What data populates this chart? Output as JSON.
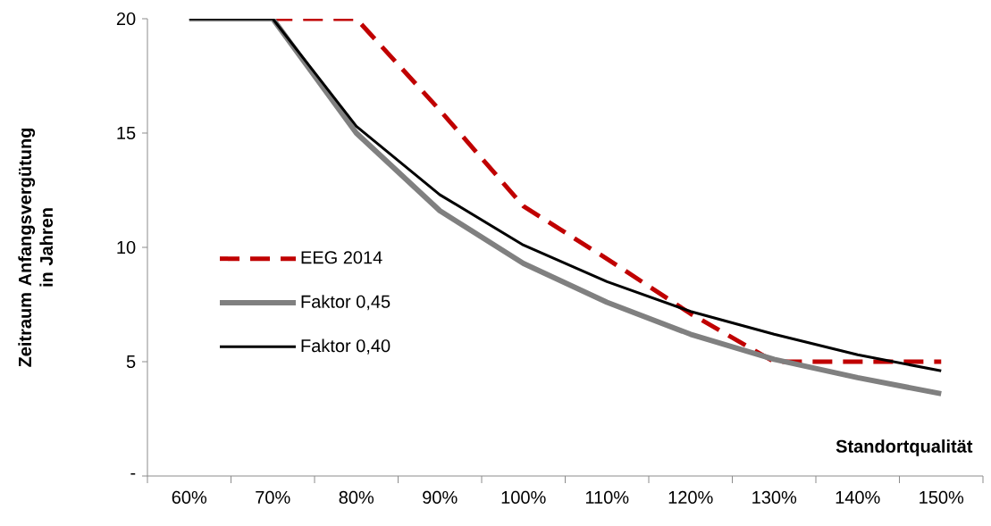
{
  "chart_data": {
    "type": "line",
    "xlabel": "Standortqualität",
    "ylabel": "Zeitraum Anfangsvergütung in Jahren",
    "categories": [
      "60%",
      "70%",
      "80%",
      "90%",
      "100%",
      "110%",
      "120%",
      "130%",
      "140%",
      "150%"
    ],
    "ylim": [
      0,
      20
    ],
    "yticks": [
      {
        "value": 0,
        "label": "-"
      },
      5,
      10,
      15,
      20
    ],
    "grid": false,
    "legend": "left",
    "marker": "none",
    "series": [
      {
        "name": "EEG 2014",
        "color": "#c00000",
        "line_style": "dashed",
        "values": [
          null,
          20,
          20,
          16,
          11.8,
          9.5,
          7.1,
          5,
          5,
          5
        ]
      },
      {
        "name": "Faktor 0,45",
        "color": "#808080",
        "line_style": "solid",
        "values": [
          20,
          20,
          15,
          11.6,
          9.3,
          7.6,
          6.2,
          5.1,
          4.3,
          3.6
        ]
      },
      {
        "name": "Faktor 0,40",
        "color": "#000000",
        "line_style": "solid",
        "values": [
          20,
          20,
          15.3,
          12.3,
          10.1,
          8.5,
          7.2,
          6.2,
          5.3,
          4.6
        ]
      }
    ]
  }
}
